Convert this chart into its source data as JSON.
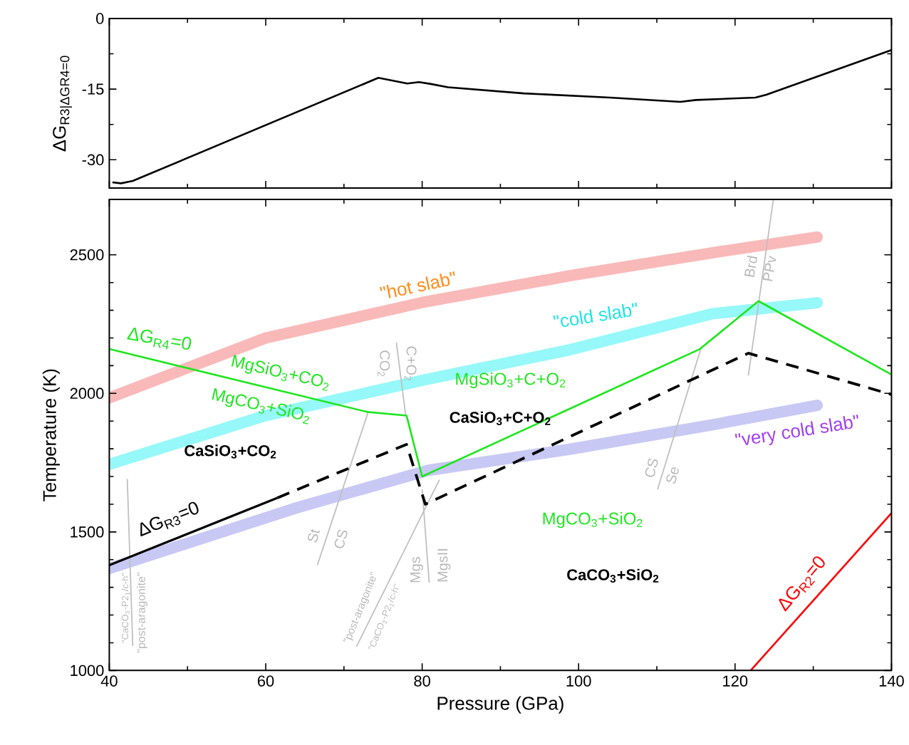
{
  "chart_data": [
    {
      "type": "line",
      "ylabel": "ΔG$_{R3|ΔGR4=0}$",
      "xlim": [
        40,
        140
      ],
      "xticks": [
        40,
        60,
        80,
        100,
        120,
        140
      ],
      "ylim": [
        -36,
        0
      ],
      "yticks": [
        0,
        -15,
        -30
      ],
      "tick_labels": "y",
      "line_style": "solid",
      "series": [
        {
          "color": "#000000",
          "x": [
            40.4,
            41.5,
            43,
            74.4,
            78.1,
            79.6,
            81.1,
            83.3,
            93,
            104,
            113,
            115,
            122.6,
            124,
            140
          ],
          "values": [
            -34.8,
            -35.0,
            -34.5,
            -12.6,
            -13.8,
            -13.5,
            -13.9,
            -14.6,
            -15.9,
            -16.8,
            -17.7,
            -17.3,
            -16.8,
            -16.2,
            -6.7
          ]
        }
      ]
    },
    {
      "type": "line",
      "xlabel": "Pressure (GPa)",
      "ylabel": "Temperature (K)",
      "xlim": [
        40,
        140
      ],
      "xticks": [
        40,
        60,
        80,
        100,
        120,
        140
      ],
      "ylim": [
        1000,
        2700
      ],
      "yticks": [
        1000,
        1500,
        2000,
        2500
      ],
      "series": [
        {
          "color": "#f9b9b9",
          "x": [
            40,
            60,
            80,
            99,
            117,
            130.5
          ],
          "values": [
            1984,
            2200,
            2328,
            2425,
            2507,
            2564
          ]
        },
        {
          "color": "#96f8f8",
          "x": [
            40,
            60,
            80,
            99,
            117,
            130.5
          ],
          "values": [
            1744,
            1920,
            2047,
            2158,
            2287,
            2327
          ]
        },
        {
          "color": "#c8c8f4",
          "x": [
            40,
            63.7,
            80.7,
            99,
            117,
            130.5
          ],
          "values": [
            1368,
            1585,
            1722,
            1799,
            1886,
            1957
          ]
        },
        {
          "color": "#c0c0c0",
          "x": [
            42.3,
            43.0
          ],
          "values": [
            1691,
            1089
          ]
        },
        {
          "color": "#c0c0c0",
          "x": [
            73.1,
            66.6
          ],
          "values": [
            1933,
            1380
          ]
        },
        {
          "color": "#c0c0c0",
          "x": [
            76.7,
            77.9
          ],
          "values": [
            2184,
            1919
          ]
        },
        {
          "color": "#c0c0c0",
          "x": [
            82.2,
            71.6
          ],
          "values": [
            1688,
            1086
          ]
        },
        {
          "color": "#c0c0c0",
          "x": [
            80.0,
            80.9
          ],
          "values": [
            1654,
            1317
          ]
        },
        {
          "color": "#c0c0c0",
          "x": [
            110.1,
            115.6
          ],
          "values": [
            1654,
            2159
          ]
        },
        {
          "color": "#c0c0c0",
          "x": [
            124.9,
            121.7
          ],
          "values": [
            2700,
            2065
          ]
        },
        {
          "color": "#1ee61e",
          "x": [
            40,
            73,
            78,
            80,
            115.5,
            123,
            140
          ],
          "values": [
            2160,
            1933,
            1920,
            1700,
            2160,
            2333,
            2068
          ]
        },
        {
          "color": "#000000",
          "line_style": "solid",
          "x": [
            40,
            61.5
          ],
          "values": [
            1380,
            1623
          ]
        },
        {
          "color": "#000000",
          "line_style": "dashed",
          "x": [
            61.5,
            78,
            80.4,
            121.7,
            140
          ],
          "values": [
            1623,
            1816,
            1600,
            2145,
            1996
          ]
        },
        {
          "color": "#ff0000",
          "x": [
            122,
            140
          ],
          "values": [
            1000,
            1568
          ]
        }
      ],
      "annotations": [
        "\"hot slab\"",
        "\"cold slab\"",
        "\"very cold slab\"",
        "ΔG$_{R4}$=0",
        "MgSiO$_{3}$+CO$_{2}$",
        "MgCO$_{3}$+SiO$_{2}$",
        "CaSiO$_{3}$+CO$_{2}$",
        "CO$_{2}$",
        "C+O$_{2}$",
        "MgSiO$_{3}$+C+O$_{2}$",
        "CaSiO$_{3}$+C+O$_{2}$",
        "Brd",
        "PPv",
        "ΔG$_{R3}$=0",
        "St",
        "CS",
        "CS",
        "Se",
        "\"CaCO$_{3}$-P2$_{1}$/c-h\"",
        "\"post-aragonite\"",
        "Mgs",
        "MgsII",
        "\"post-aragonite\"",
        "\"CaCO$_{3}$-P2$_{1}$/c-h\"",
        "MgCO$_{3}$+SiO$_{2}$",
        "CaCO$_{3}$+SiO$_{2}$",
        "ΔG$_{R2}$=0"
      ]
    }
  ]
}
